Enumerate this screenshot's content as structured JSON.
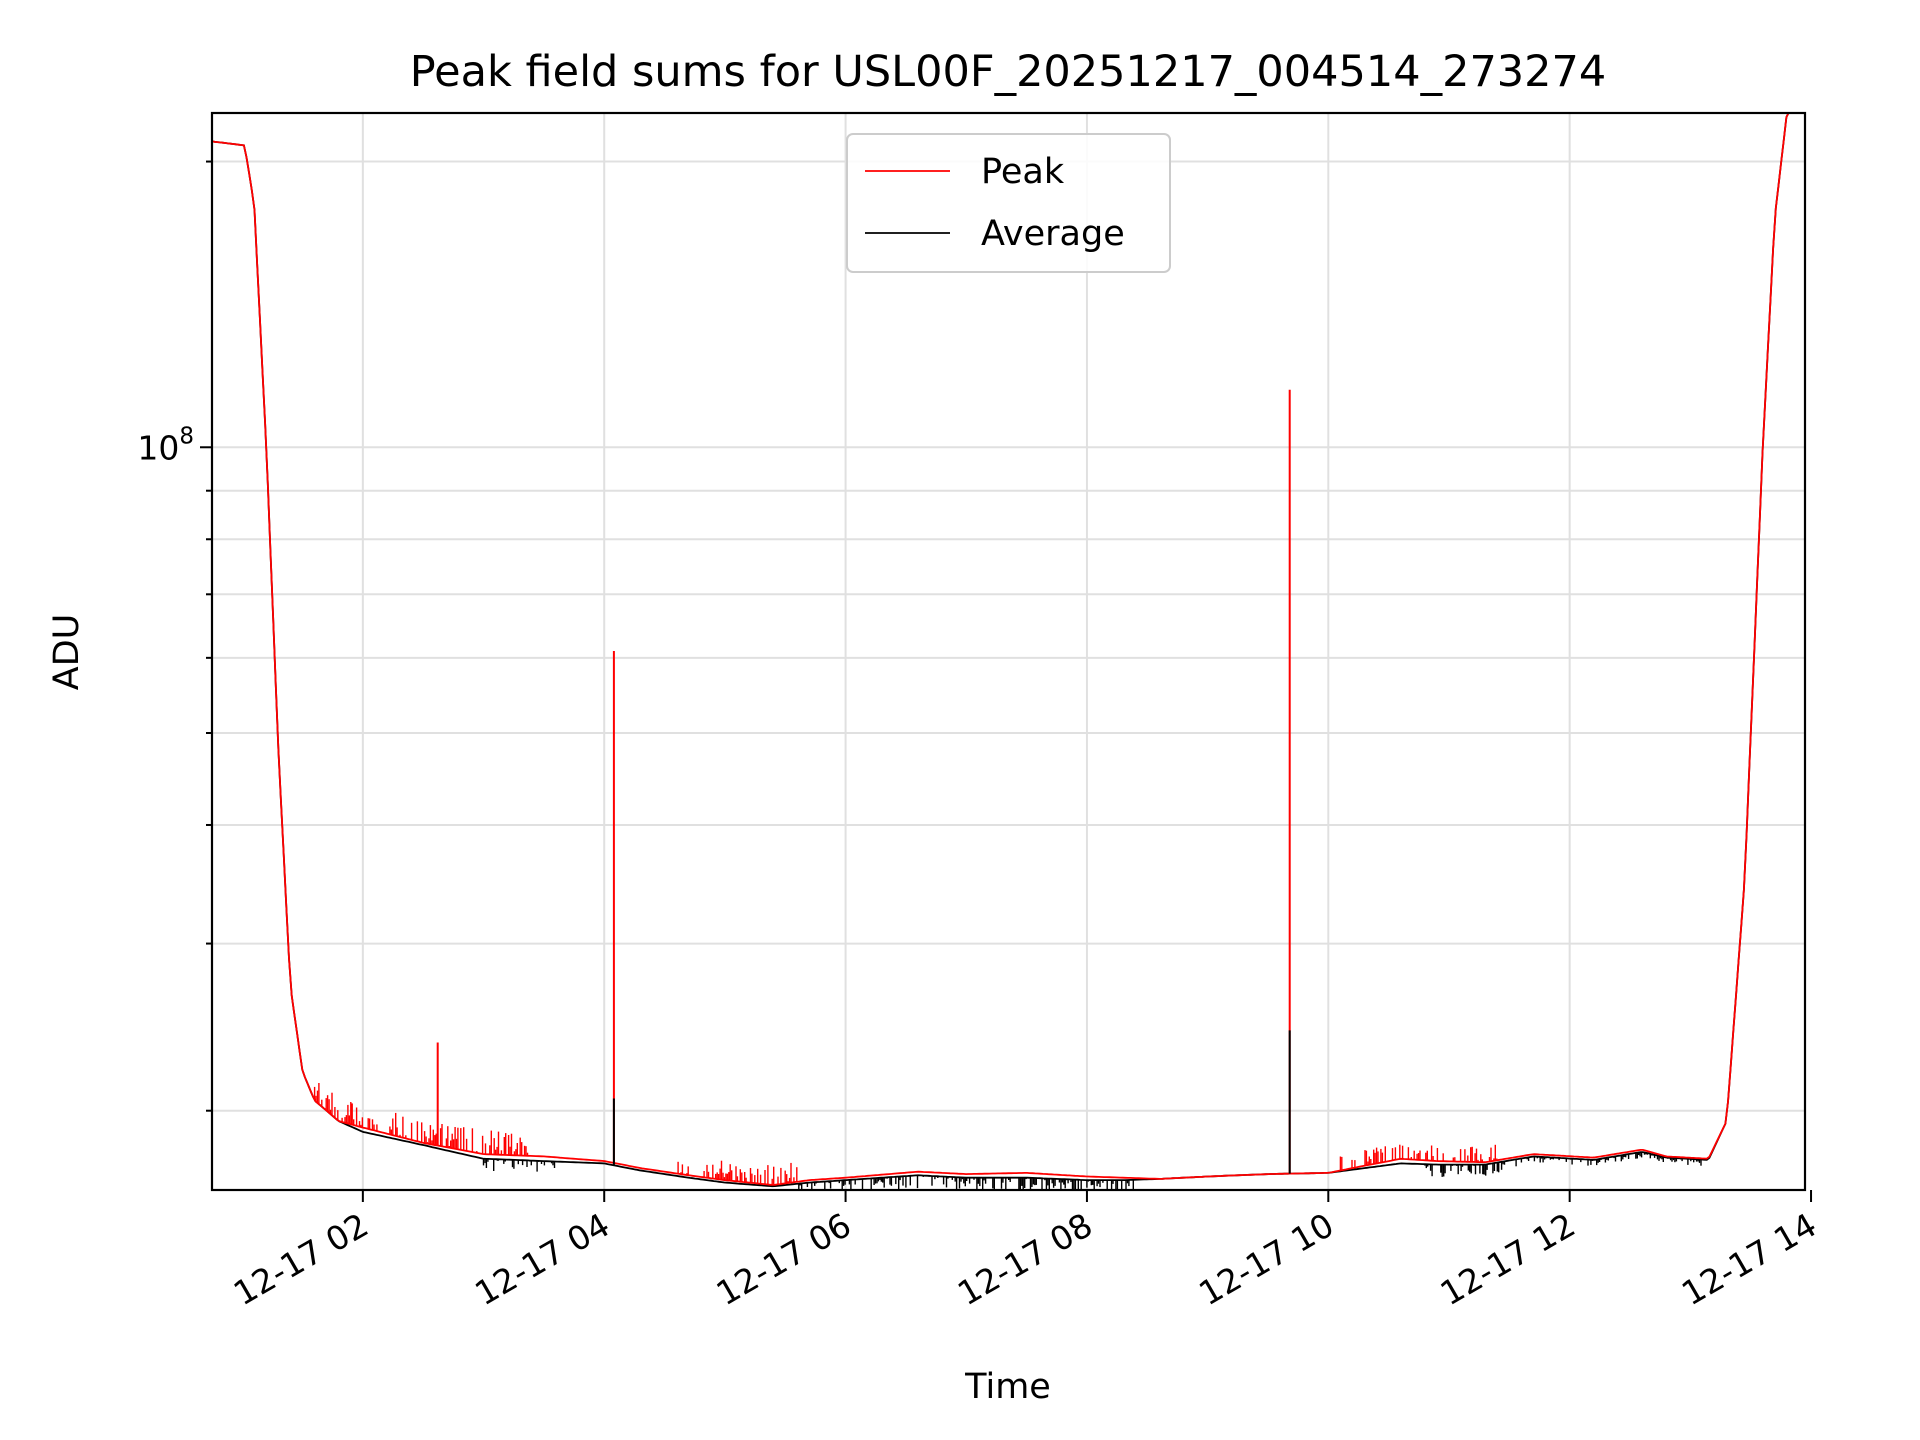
{
  "colors": {
    "peak": "#ff0000",
    "average": "#000000",
    "grid": "#e0e0e0"
  },
  "chart_data": {
    "type": "line",
    "title": "Peak field sums for USL00F_20251217_004514_273274",
    "xlabel": "Time",
    "ylabel": "ADU",
    "yscale": "log",
    "grid": true,
    "legend_position": "top-center",
    "xlim_hours": [
      0.75,
      13.95
    ],
    "ylim": [
      16500000,
      225000000
    ],
    "x_ticks": [
      {
        "hour": 2,
        "label": "12-17 02"
      },
      {
        "hour": 4,
        "label": "12-17 04"
      },
      {
        "hour": 6,
        "label": "12-17 06"
      },
      {
        "hour": 8,
        "label": "12-17 08"
      },
      {
        "hour": 10,
        "label": "12-17 10"
      },
      {
        "hour": 12,
        "label": "12-17 12"
      },
      {
        "hour": 14,
        "label": "12-17 14"
      }
    ],
    "y_major_ticks": [
      {
        "value": 100000000,
        "base": "10",
        "exp": "8"
      }
    ],
    "y_minor_ticks": [
      20000000,
      30000000,
      40000000,
      50000000,
      60000000,
      70000000,
      80000000,
      90000000,
      200000000
    ],
    "x_hours": [
      0.75,
      1.02,
      1.1,
      1.2,
      1.3,
      1.4,
      1.5,
      1.6,
      1.7,
      1.8,
      2.0,
      2.5,
      3.0,
      3.5,
      4.0,
      4.3,
      4.7,
      5.0,
      5.4,
      5.7,
      6.0,
      6.6,
      7.0,
      7.5,
      8.0,
      8.3,
      8.6,
      9.0,
      9.5,
      10.0,
      10.3,
      10.6,
      10.9,
      11.3,
      11.7,
      12.2,
      12.6,
      12.8,
      13.15,
      13.3,
      13.45,
      13.6,
      13.7,
      13.8,
      13.95
    ],
    "series": [
      {
        "name": "Peak",
        "color": "#ff0000",
        "values": [
          210000000,
          208000000,
          180000000,
          100000000,
          48000000,
          27000000,
          22000000,
          20500000,
          20000000,
          19500000,
          19200000,
          18500000,
          18000000,
          17900000,
          17700000,
          17400000,
          17100000,
          16900000,
          16700000,
          16900000,
          17000000,
          17250000,
          17150000,
          17200000,
          17050000,
          17000000,
          16950000,
          17050000,
          17150000,
          17200000,
          17500000,
          17800000,
          17700000,
          17650000,
          18000000,
          17850000,
          18200000,
          17900000,
          17800000,
          19500000,
          35000000,
          100000000,
          175000000,
          225000000,
          230000000
        ],
        "spikes": [
          {
            "hour": 2.62,
            "value": 23600000
          },
          {
            "hour": 4.08,
            "value": 61000000
          },
          {
            "hour": 9.68,
            "value": 115000000
          }
        ]
      },
      {
        "name": "Average",
        "color": "#000000",
        "values": [
          210000000,
          208000000,
          180000000,
          100000000,
          48000000,
          27000000,
          22000000,
          20500000,
          20000000,
          19500000,
          19000000,
          18400000,
          17800000,
          17700000,
          17600000,
          17300000,
          17000000,
          16800000,
          16650000,
          16800000,
          16900000,
          17100000,
          17000000,
          17000000,
          16900000,
          16900000,
          16950000,
          17050000,
          17150000,
          17200000,
          17400000,
          17600000,
          17550000,
          17550000,
          17900000,
          17750000,
          18100000,
          17850000,
          17750000,
          19500000,
          35000000,
          100000000,
          175000000,
          225000000,
          230000000
        ],
        "spikes": [
          {
            "hour": 4.08,
            "value": 20600000
          },
          {
            "hour": 9.68,
            "value": 24300000
          }
        ]
      }
    ]
  }
}
